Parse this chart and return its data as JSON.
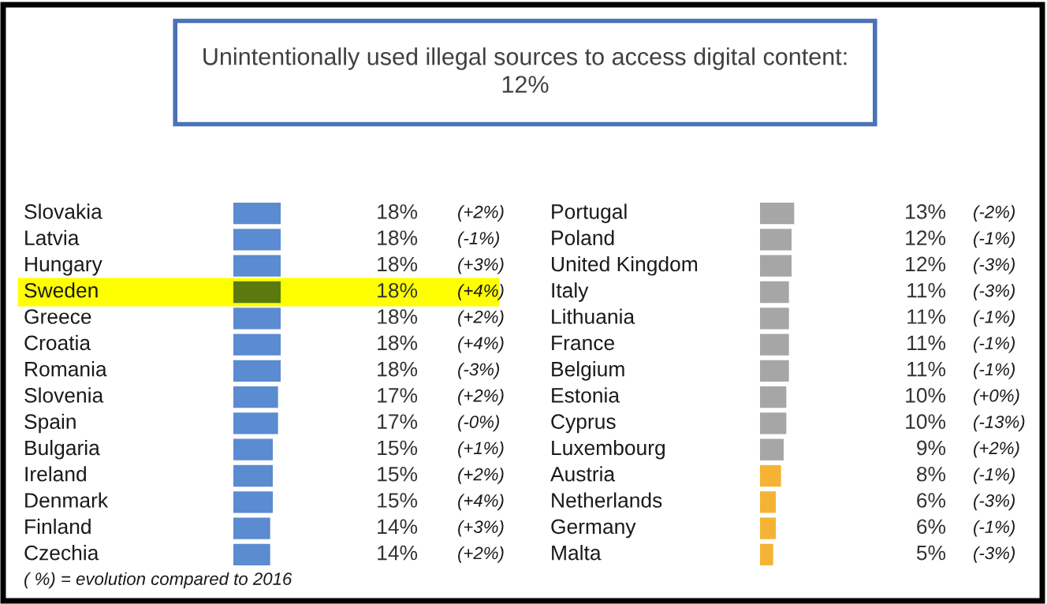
{
  "chart_data": [
    {
      "type": "bar",
      "orientation": "horizontal",
      "title": "Unintentionally used illegal sources to access digital content:\n12%",
      "categories": [
        "Slovakia",
        "Latvia",
        "Hungary",
        "Sweden",
        "Greece",
        "Croatia",
        "Romania",
        "Slovenia",
        "Spain",
        "Bulgaria",
        "Ireland",
        "Denmark",
        "Finland",
        "Czechia"
      ],
      "values": [
        18,
        18,
        18,
        18,
        18,
        18,
        18,
        17,
        17,
        15,
        15,
        15,
        14,
        14
      ],
      "value_labels": [
        "18%",
        "18%",
        "18%",
        "18%",
        "18%",
        "18%",
        "18%",
        "17%",
        "17%",
        "15%",
        "15%",
        "15%",
        "14%",
        "14%"
      ],
      "colors": [
        "#5b8bd0",
        "#5b8bd0",
        "#5b8bd0",
        "#5a7a10",
        "#5b8bd0",
        "#5b8bd0",
        "#5b8bd0",
        "#5b8bd0",
        "#5b8bd0",
        "#5b8bd0",
        "#5b8bd0",
        "#5b8bd0",
        "#5b8bd0",
        "#5b8bd0"
      ],
      "bands": [
        {
          "axis": "y",
          "from": "Sweden",
          "to": "Sweden",
          "color": "#ffff00"
        }
      ],
      "annotations": [
        "(+2%)",
        "(-1%)",
        "(+3%)",
        "(+4%)",
        "(+2%)",
        "(+4%)",
        "(-3%)",
        "(+2%)",
        "(-0%)",
        "(+1%)",
        "(+2%)",
        "(+4%)",
        "(+3%)",
        "(+2%)",
        "( %) = evolution compared to 2016"
      ]
    },
    {
      "type": "bar",
      "orientation": "horizontal",
      "categories": [
        "Portugal",
        "Poland",
        "United Kingdom",
        "Italy",
        "Lithuania",
        "France",
        "Belgium",
        "Estonia",
        "Cyprus",
        "Luxembourg",
        "Austria",
        "Netherlands",
        "Germany",
        "Malta"
      ],
      "values": [
        13,
        12,
        12,
        11,
        11,
        11,
        11,
        10,
        10,
        9,
        8,
        6,
        6,
        5
      ],
      "value_labels": [
        "13%",
        "12%",
        "12%",
        "11%",
        "11%",
        "11%",
        "11%",
        "10%",
        "10%",
        "9%",
        "8%",
        "6%",
        "6%",
        "5%"
      ],
      "colors": [
        "#a6a6a6",
        "#a6a6a6",
        "#a6a6a6",
        "#a6a6a6",
        "#a6a6a6",
        "#a6a6a6",
        "#a6a6a6",
        "#a6a6a6",
        "#a6a6a6",
        "#a6a6a6",
        "#f5b335",
        "#f5b335",
        "#f5b335",
        "#f5b335"
      ],
      "annotations": [
        "(-2%)",
        "(-1%)",
        "(-3%)",
        "(-3%)",
        "(-1%)",
        "(-1%)",
        "(-1%)",
        "(+0%)",
        "(-13%)",
        "(+2%)",
        "(-1%)",
        "(-3%)",
        "(-1%)",
        "(-3%)"
      ]
    }
  ]
}
